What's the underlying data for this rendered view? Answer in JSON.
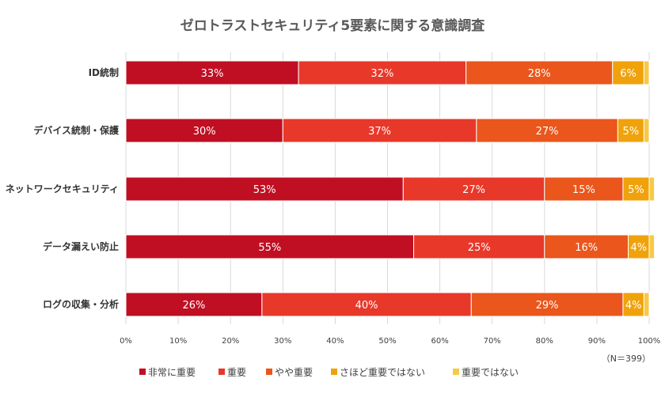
{
  "chart_data": {
    "type": "bar",
    "orientation": "horizontal",
    "stacked": true,
    "percent": true,
    "title": "ゼロトラストセキュリティ5要素に関する意識調査",
    "note": "（N＝399）",
    "categories": [
      "ID統制",
      "デバイス統制・保護",
      "ネットワークセキュリティ",
      "データ漏えい防止",
      "ログの収集・分析"
    ],
    "series": [
      {
        "name": "非常に重要",
        "color": "#c00f23",
        "values": [
          33,
          30,
          53,
          55,
          26
        ]
      },
      {
        "name": "重要",
        "color": "#e8382a",
        "values": [
          32,
          37,
          27,
          25,
          40
        ]
      },
      {
        "name": "やや重要",
        "color": "#ea561b",
        "values": [
          28,
          27,
          15,
          16,
          29
        ]
      },
      {
        "name": "さほど重要ではない",
        "color": "#f0a20c",
        "values": [
          6,
          5,
          5,
          4,
          4
        ]
      },
      {
        "name": "重要ではない",
        "color": "#f7c948",
        "values": [
          1,
          1,
          1,
          1,
          1
        ]
      }
    ],
    "data_labels": [
      [
        "33%",
        "30%",
        "53%",
        "55%",
        "26%"
      ],
      [
        "32%",
        "37%",
        "27%",
        "25%",
        "40%"
      ],
      [
        "28%",
        "27%",
        "15%",
        "16%",
        "29%"
      ],
      [
        "6%",
        "5%",
        "5%",
        "4%",
        "4%"
      ],
      [
        "",
        "",
        "",
        "",
        ""
      ]
    ],
    "xlim": [
      0,
      100
    ],
    "xticks": [
      "0%",
      "10%",
      "20%",
      "30%",
      "40%",
      "50%",
      "60%",
      "70%",
      "80%",
      "90%",
      "100%"
    ],
    "grid": true,
    "legend_position": "bottom"
  }
}
